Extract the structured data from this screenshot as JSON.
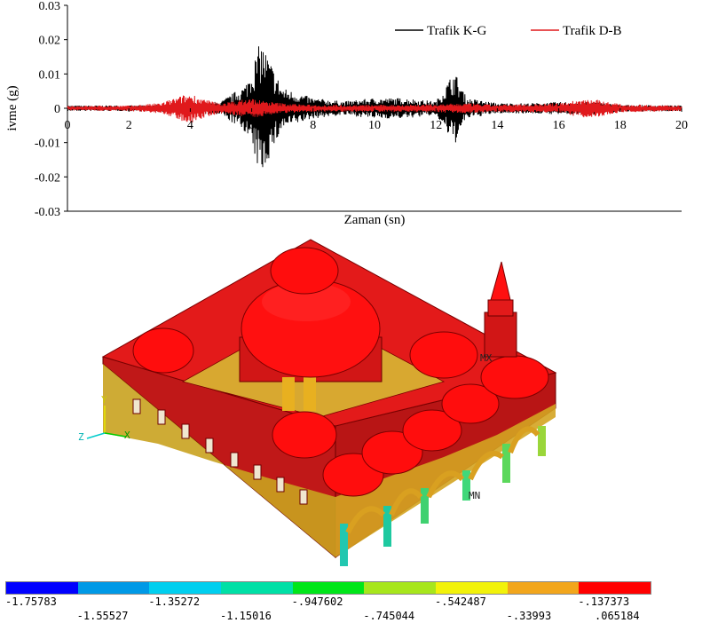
{
  "chart_data": {
    "type": "line",
    "title": "",
    "xlabel": "Zaman (sn)",
    "ylabel": "ivme (g)",
    "xlim": [
      0,
      20
    ],
    "ylim": [
      -0.03,
      0.03
    ],
    "x_ticks": [
      "0",
      "2",
      "4",
      "6",
      "8",
      "10",
      "12",
      "14",
      "16",
      "18",
      "20"
    ],
    "y_ticks": [
      "0.03",
      "0.02",
      "0.01",
      "0",
      "-0.01",
      "-0.02",
      "-0.03"
    ],
    "grid": false,
    "legend_position": "top-right",
    "series": [
      {
        "name": "Trafik K-G",
        "color": "#000000",
        "envelope_x": [
          0,
          2,
          3,
          4,
          5,
          5.8,
          6.3,
          7,
          8,
          9,
          10,
          11,
          12,
          12.6,
          13,
          14,
          15,
          16,
          17,
          18,
          20
        ],
        "envelope_amplitude": [
          0.0008,
          0.0008,
          0.001,
          0.0015,
          0.002,
          0.007,
          0.02,
          0.006,
          0.003,
          0.002,
          0.003,
          0.003,
          0.002,
          0.011,
          0.003,
          0.0015,
          0.0015,
          0.0018,
          0.002,
          0.001,
          0.0008
        ]
      },
      {
        "name": "Trafik D-B",
        "color": "#e0191c",
        "envelope_x": [
          0,
          2,
          3,
          3.5,
          4,
          4.5,
          5,
          6,
          6.5,
          7,
          8,
          10,
          12,
          13,
          14,
          16,
          17,
          18,
          20
        ],
        "envelope_amplitude": [
          0.0007,
          0.0008,
          0.0015,
          0.003,
          0.0045,
          0.0025,
          0.0015,
          0.003,
          0.002,
          0.0015,
          0.001,
          0.001,
          0.0012,
          0.0015,
          0.001,
          0.0015,
          0.003,
          0.0012,
          0.0008
        ]
      }
    ]
  },
  "model": {
    "axis_labels": {
      "y": "Y",
      "z": "Z",
      "x": "X"
    },
    "max_marker": "MX",
    "min_marker": "MN"
  },
  "colorbar": {
    "colors": [
      "#0000ff",
      "#0099e6",
      "#00cfef",
      "#00e0a6",
      "#00e619",
      "#a7e61c",
      "#f2f20a",
      "#f2a61c",
      "#ff0000"
    ],
    "labels_top": [
      "-1.75783",
      "-1.35272",
      "-.947602",
      "-.542487",
      "-.137373"
    ],
    "labels_bottom": [
      "-1.55527",
      "-1.15016",
      "-.745044",
      "-.33993",
      ".065184"
    ]
  }
}
